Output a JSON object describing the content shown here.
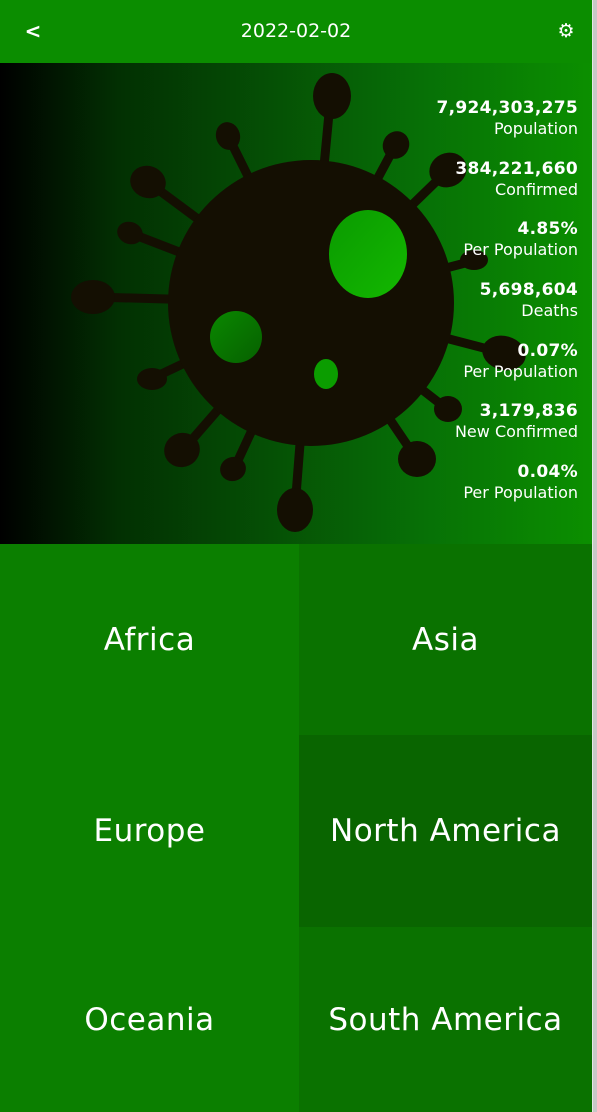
{
  "header": {
    "back_label": "<",
    "title": "2022-02-02",
    "settings_label": "⚙"
  },
  "stats": [
    {
      "value": "7,924,303,275",
      "label": "Population"
    },
    {
      "value": "384,221,660",
      "label": "Confirmed"
    },
    {
      "value": "4.85%",
      "label": "Per Population"
    },
    {
      "value": "5,698,604",
      "label": "Deaths"
    },
    {
      "value": "0.07%",
      "label": "Per Population"
    },
    {
      "value": "3,179,836",
      "label": "New Confirmed"
    },
    {
      "value": "0.04%",
      "label": "Per Population"
    }
  ],
  "regions": {
    "africa": "Africa",
    "asia": "Asia",
    "europe": "Europe",
    "north_america": "North America",
    "oceania": "Oceania",
    "south_america": "South America"
  },
  "colors": {
    "header": "#0b8d00",
    "tile_primary": "#0b7f00",
    "tile_secondary": "#0a7200",
    "tile_dark": "#096500",
    "virus_body": "#140f02",
    "virus_spot": "#13b800"
  },
  "icons": {
    "back": "chevron-left-icon",
    "settings": "gear-icon",
    "hero": "virus-icon"
  }
}
